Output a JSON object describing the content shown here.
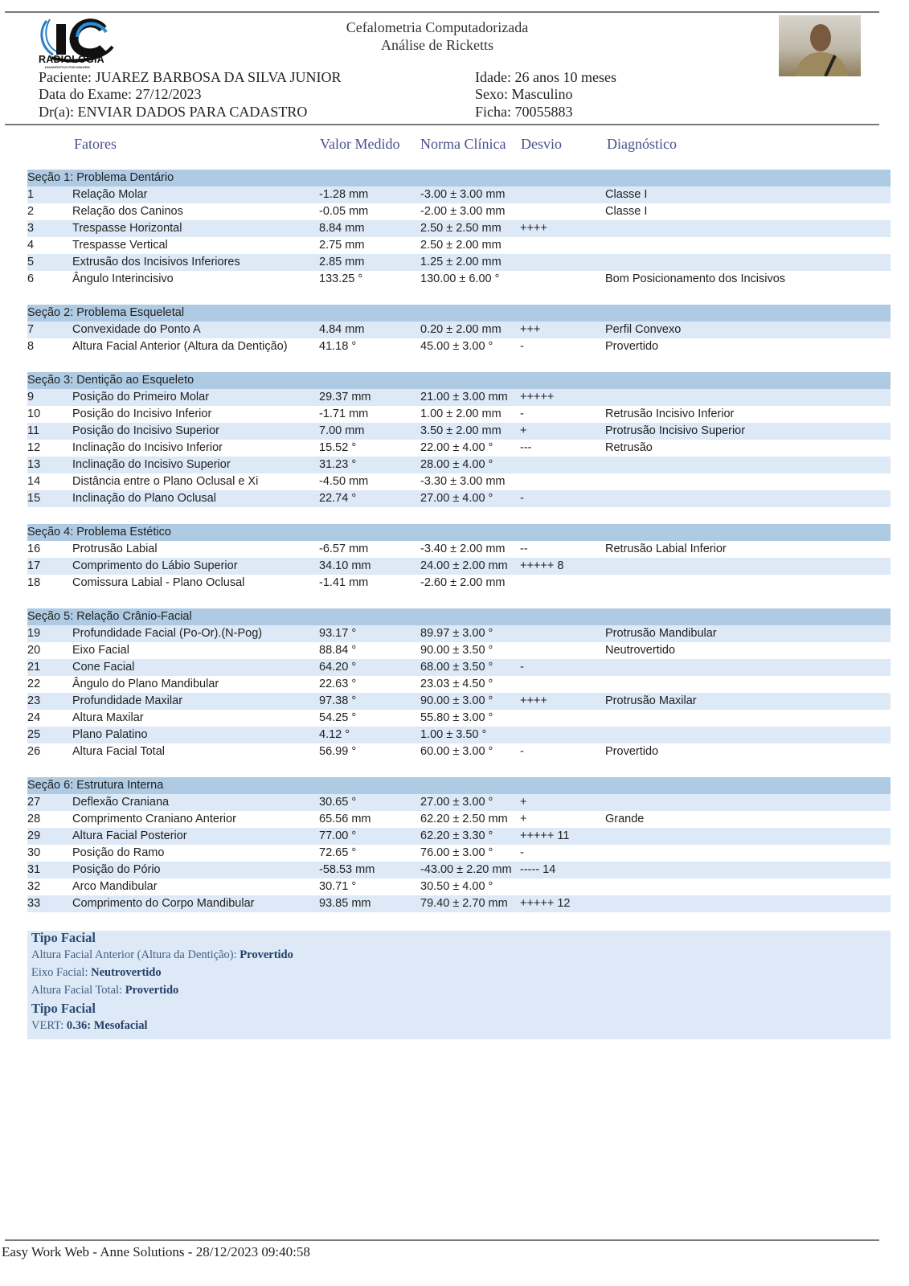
{
  "header": {
    "logo_text": "RADIOLOGIA",
    "logo_subtext": "DIAGNÓSTICO POR IMAGEM",
    "title": "Cefalometria Computadorizada",
    "subtitle": "Análise de Ricketts",
    "patient": "Paciente: JUAREZ BARBOSA DA SILVA JUNIOR",
    "exam_date": "Data do Exame: 27/12/2023",
    "doctor": "Dr(a): ENVIAR DADOS PARA CADASTRO",
    "age": "Idade: 26 anos 10 meses",
    "sex": "Sexo: Masculino",
    "record": "Ficha: 70055883"
  },
  "columns": {
    "factors": "Fatores",
    "measured": "Valor Medido",
    "norm": "Norma Clínica",
    "deviation": "Desvio",
    "diagnosis": "Diagnóstico"
  },
  "sections": [
    {
      "title": "Seção 1: Problema Dentário",
      "rows": [
        [
          "1",
          "Relação Molar",
          "-1.28 mm",
          "-3.00 ± 3.00 mm",
          "",
          "Classe I"
        ],
        [
          "2",
          "Relação dos Caninos",
          "-0.05 mm",
          "-2.00 ± 3.00 mm",
          "",
          "Classe I"
        ],
        [
          "3",
          "Trespasse Horizontal",
          "8.84 mm",
          "2.50 ± 2.50 mm",
          "++++",
          ""
        ],
        [
          "4",
          "Trespasse Vertical",
          "2.75 mm",
          "2.50 ± 2.00 mm",
          "",
          ""
        ],
        [
          "5",
          "Extrusão dos Incisivos Inferiores",
          "2.85 mm",
          "1.25 ± 2.00 mm",
          "",
          ""
        ],
        [
          "6",
          "Ângulo Interincisivo",
          "133.25 °",
          "130.00 ± 6.00 °",
          "",
          "Bom Posicionamento dos Incisivos"
        ]
      ]
    },
    {
      "title": "Seção 2: Problema Esqueletal",
      "rows": [
        [
          "7",
          "Convexidade do Ponto A",
          "4.84 mm",
          "0.20 ± 2.00 mm",
          "+++",
          "Perfil Convexo"
        ],
        [
          "8",
          "Altura Facial Anterior (Altura da Dentição)",
          "41.18 °",
          "45.00 ± 3.00 °",
          "-",
          "Provertido"
        ]
      ]
    },
    {
      "title": "Seção 3: Dentição ao Esqueleto",
      "rows": [
        [
          "9",
          "Posição do Primeiro Molar",
          "29.37 mm",
          "21.00 ± 3.00 mm",
          "+++++",
          ""
        ],
        [
          "10",
          "Posição do Incisivo Inferior",
          "-1.71 mm",
          "1.00 ± 2.00 mm",
          "-",
          "Retrusão Incisivo Inferior"
        ],
        [
          "11",
          "Posição do Incisivo Superior",
          "7.00 mm",
          "3.50 ± 2.00 mm",
          "+",
          "Protrusão Incisivo Superior"
        ],
        [
          "12",
          "Inclinação do Incisivo Inferior",
          "15.52 °",
          "22.00 ± 4.00 °",
          "---",
          "Retrusão"
        ],
        [
          "13",
          "Inclinação do Incisivo Superior",
          "31.23 °",
          "28.00 ± 4.00 °",
          "",
          ""
        ],
        [
          "14",
          "Distância entre o Plano Oclusal e Xi",
          "-4.50 mm",
          "-3.30 ± 3.00 mm",
          "",
          ""
        ],
        [
          "15",
          "Inclinação do Plano Oclusal",
          "22.74 °",
          "27.00 ± 4.00 °",
          "-",
          ""
        ]
      ]
    },
    {
      "title": "Seção 4: Problema Estético",
      "rows": [
        [
          "16",
          "Protrusão Labial",
          "-6.57 mm",
          "-3.40 ± 2.00 mm",
          "--",
          "Retrusão Labial Inferior"
        ],
        [
          "17",
          "Comprimento do Lábio Superior",
          "34.10 mm",
          "24.00 ± 2.00 mm",
          "+++++ 8",
          ""
        ],
        [
          "18",
          "Comissura Labial - Plano Oclusal",
          "-1.41 mm",
          "-2.60 ± 2.00 mm",
          "",
          ""
        ]
      ]
    },
    {
      "title": "Seção 5: Relação Crânio-Facial",
      "rows": [
        [
          "19",
          "Profundidade Facial (Po-Or).(N-Pog)",
          "93.17 °",
          "89.97 ± 3.00 °",
          "",
          "Protrusão Mandibular"
        ],
        [
          "20",
          "Eixo Facial",
          "88.84 °",
          "90.00 ± 3.50 °",
          "",
          "Neutrovertido"
        ],
        [
          "21",
          "Cone Facial",
          "64.20 °",
          "68.00 ± 3.50 °",
          "-",
          ""
        ],
        [
          "22",
          "Ângulo do Plano Mandibular",
          "22.63 °",
          "23.03 ± 4.50 °",
          "",
          ""
        ],
        [
          "23",
          "Profundidade Maxilar",
          "97.38 °",
          "90.00 ± 3.00 °",
          "++++",
          "Protrusão Maxilar"
        ],
        [
          "24",
          "Altura Maxilar",
          "54.25 °",
          "55.80 ± 3.00 °",
          "",
          ""
        ],
        [
          "25",
          "Plano Palatino",
          "4.12 °",
          "1.00 ± 3.50 °",
          "",
          ""
        ],
        [
          "26",
          "Altura Facial Total",
          "56.99 °",
          "60.00 ± 3.00 °",
          "-",
          "Provertido"
        ]
      ]
    },
    {
      "title": "Seção 6: Estrutura Interna",
      "rows": [
        [
          "27",
          "Deflexão Craniana",
          "30.65 °",
          "27.00 ± 3.00 °",
          "+",
          ""
        ],
        [
          "28",
          "Comprimento Craniano Anterior",
          "65.56 mm",
          "62.20 ± 2.50 mm",
          "+",
          "Grande"
        ],
        [
          "29",
          "Altura Facial Posterior",
          "77.00 °",
          "62.20 ± 3.30 °",
          "+++++ 11",
          ""
        ],
        [
          "30",
          "Posição do Ramo",
          "72.65 °",
          "76.00 ± 3.00 °",
          "-",
          ""
        ],
        [
          "31",
          "Posição do Pório",
          "-58.53 mm",
          "-43.00 ± 2.20 mm",
          "----- 14",
          ""
        ],
        [
          "32",
          "Arco Mandibular",
          "30.71 °",
          "30.50 ± 4.00 °",
          "",
          ""
        ],
        [
          "33",
          "Comprimento do Corpo Mandibular",
          "93.85 mm",
          "79.40 ± 2.70 mm",
          "+++++ 12",
          ""
        ]
      ]
    }
  ],
  "summary": {
    "heading1": "Tipo Facial",
    "items": [
      {
        "label": "Altura Facial Anterior (Altura da Dentição): ",
        "value": "Provertido"
      },
      {
        "label": "Eixo Facial: ",
        "value": "Neutrovertido"
      },
      {
        "label": "Altura Facial Total: ",
        "value": "Provertido"
      }
    ],
    "heading2": "Tipo Facial",
    "vert_label": "VERT: ",
    "vert_value": "0.36: Mesofacial"
  },
  "footer": "Easy Work Web - Anne Solutions - 28/12/2023 09:40:58",
  "colors": {
    "section_bg": "#afcbe3",
    "stripe_bg": "#dde9f6",
    "header_text": "#4a4f8c"
  }
}
